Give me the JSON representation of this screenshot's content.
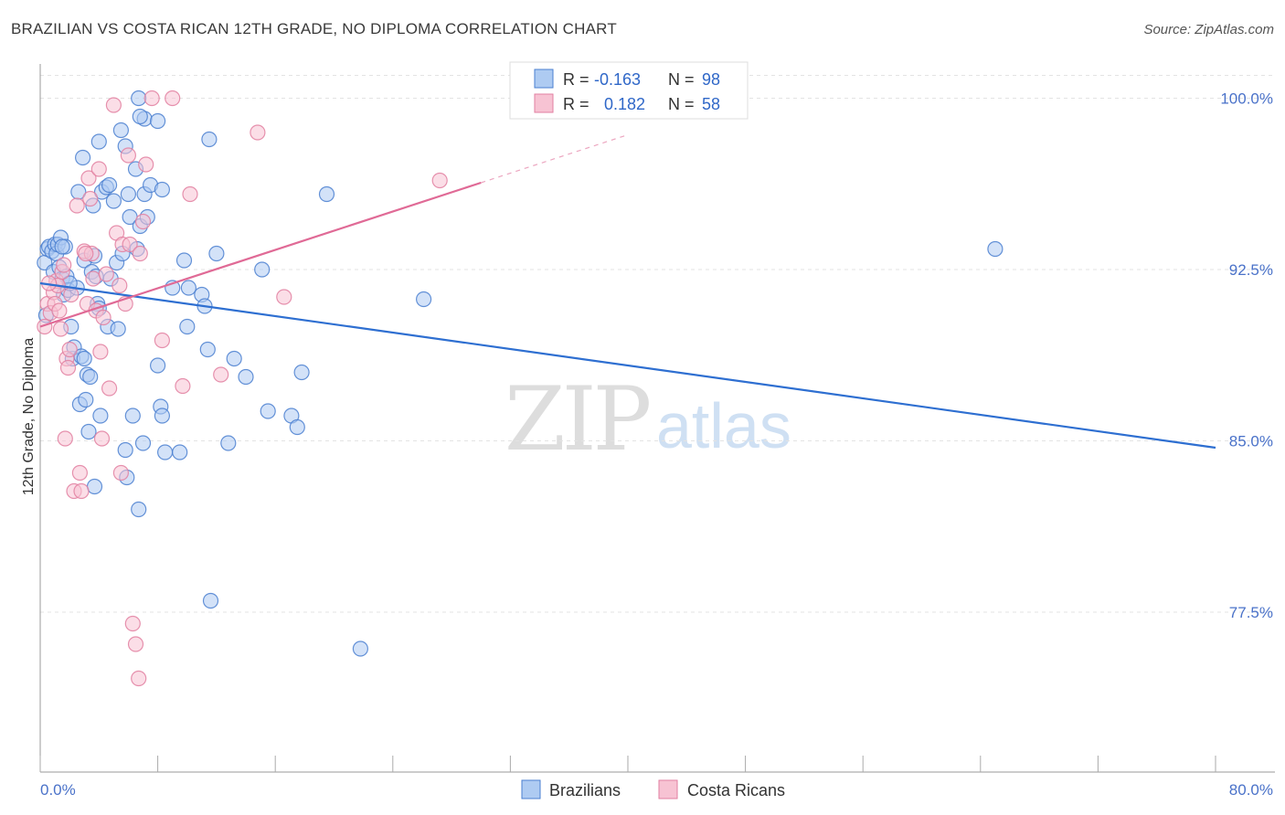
{
  "title": "BRAZILIAN VS COSTA RICAN 12TH GRADE, NO DIPLOMA CORRELATION CHART",
  "source": "Source: ZipAtlas.com",
  "watermark": {
    "zip": "ZIP",
    "atlas": "atlas"
  },
  "colors": {
    "blue_fill": "#aecbf2",
    "blue_stroke": "#4a7fd0",
    "blue_line": "#2e6fd1",
    "pink_fill": "#f7c3d3",
    "pink_stroke": "#e27fa0",
    "pink_line": "#e06a96",
    "grid": "#e3e3e3",
    "tick_label": "#4a72c9"
  },
  "legend": {
    "rows": [
      {
        "r_label": "R =",
        "r_value": "-0.163",
        "n_label": "N =",
        "n_value": "98",
        "series": "blue"
      },
      {
        "r_label": "R =",
        "r_value": "0.182",
        "n_label": "N =",
        "n_value": "58",
        "series": "pink"
      }
    ]
  },
  "chart_data": {
    "type": "scatter",
    "title": "BRAZILIAN VS COSTA RICAN 12TH GRADE, NO DIPLOMA CORRELATION CHART",
    "xlabel": "",
    "ylabel": "12th Grade, No Diploma",
    "xlim": [
      0,
      80
    ],
    "ylim": [
      70.5,
      101.5
    ],
    "x_tick_labels": [
      "0.0%",
      "80.0%"
    ],
    "y_ticks": [
      77.5,
      85.0,
      92.5,
      100.0
    ],
    "y_tick_labels": [
      "77.5%",
      "85.0%",
      "92.5%",
      "100.0%"
    ],
    "legend_position": "bottom",
    "series": [
      {
        "name": "Brazilians",
        "color": "blue",
        "R": -0.163,
        "N": 98,
        "trend": {
          "x": [
            0,
            80
          ],
          "y": [
            91.9,
            84.7
          ],
          "dashed_from": null
        },
        "points": [
          [
            0.3,
            92.8
          ],
          [
            0.4,
            90.5
          ],
          [
            0.5,
            93.4
          ],
          [
            0.6,
            93.5
          ],
          [
            0.8,
            93.3
          ],
          [
            0.9,
            92.4
          ],
          [
            1.0,
            93.6
          ],
          [
            1.1,
            93.2
          ],
          [
            1.2,
            93.6
          ],
          [
            1.3,
            92.6
          ],
          [
            1.4,
            93.9
          ],
          [
            1.5,
            92.1
          ],
          [
            1.6,
            91.4
          ],
          [
            1.7,
            93.5
          ],
          [
            1.8,
            92.2
          ],
          [
            1.9,
            91.6
          ],
          [
            2.1,
            90.0
          ],
          [
            2.2,
            88.6
          ],
          [
            2.3,
            89.1
          ],
          [
            2.5,
            91.7
          ],
          [
            2.6,
            95.9
          ],
          [
            2.7,
            86.6
          ],
          [
            2.8,
            88.7
          ],
          [
            2.9,
            97.4
          ],
          [
            3.0,
            92.9
          ],
          [
            3.1,
            86.8
          ],
          [
            3.2,
            87.9
          ],
          [
            3.3,
            85.4
          ],
          [
            3.4,
            87.8
          ],
          [
            3.5,
            92.4
          ],
          [
            3.6,
            95.3
          ],
          [
            3.7,
            93.1
          ],
          [
            3.8,
            92.2
          ],
          [
            3.9,
            91.0
          ],
          [
            4.0,
            98.1
          ],
          [
            4.1,
            86.1
          ],
          [
            4.2,
            95.9
          ],
          [
            4.5,
            96.1
          ],
          [
            4.6,
            90.0
          ],
          [
            4.7,
            96.2
          ],
          [
            4.8,
            92.1
          ],
          [
            5.0,
            95.5
          ],
          [
            5.2,
            92.8
          ],
          [
            5.3,
            89.9
          ],
          [
            5.5,
            98.6
          ],
          [
            5.6,
            93.2
          ],
          [
            5.8,
            97.9
          ],
          [
            6.0,
            95.8
          ],
          [
            6.1,
            94.8
          ],
          [
            6.3,
            86.1
          ],
          [
            6.5,
            96.9
          ],
          [
            6.6,
            93.4
          ],
          [
            6.8,
            94.4
          ],
          [
            7.0,
            84.9
          ],
          [
            7.1,
            95.8
          ],
          [
            7.3,
            94.8
          ],
          [
            7.5,
            96.2
          ],
          [
            8.0,
            88.3
          ],
          [
            8.2,
            86.5
          ],
          [
            8.3,
            86.1
          ],
          [
            8.5,
            84.5
          ],
          [
            9.0,
            91.7
          ],
          [
            9.5,
            84.5
          ],
          [
            9.8,
            92.9
          ],
          [
            10.1,
            91.7
          ],
          [
            11.0,
            91.4
          ],
          [
            11.2,
            90.9
          ],
          [
            11.4,
            89.0
          ],
          [
            11.5,
            98.2
          ],
          [
            12.0,
            93.2
          ],
          [
            12.8,
            84.9
          ],
          [
            13.2,
            88.6
          ],
          [
            14.0,
            87.8
          ],
          [
            15.1,
            92.5
          ],
          [
            15.5,
            86.3
          ],
          [
            17.1,
            86.1
          ],
          [
            17.5,
            85.6
          ],
          [
            17.8,
            88.0
          ],
          [
            19.5,
            95.8
          ],
          [
            21.8,
            75.9
          ],
          [
            26.1,
            91.2
          ],
          [
            65.0,
            93.4
          ],
          [
            6.7,
            100.0
          ],
          [
            7.1,
            99.1
          ],
          [
            8.0,
            99.0
          ],
          [
            6.8,
            99.2
          ],
          [
            8.3,
            96.0
          ],
          [
            4.0,
            90.8
          ],
          [
            2.0,
            91.9
          ],
          [
            1.5,
            93.5
          ],
          [
            6.7,
            82.0
          ],
          [
            5.9,
            83.4
          ],
          [
            3.7,
            83.0
          ],
          [
            11.6,
            78.0
          ],
          [
            5.8,
            84.6
          ],
          [
            10.0,
            90.0
          ],
          [
            3.0,
            88.6
          ]
        ]
      },
      {
        "name": "Costa Ricans",
        "color": "pink",
        "R": 0.182,
        "N": 58,
        "trend": {
          "x": [
            0,
            30,
            40
          ],
          "y": [
            90.0,
            96.3,
            98.4
          ],
          "dashed_from": 30
        },
        "points": [
          [
            0.3,
            90.0
          ],
          [
            0.5,
            91.0
          ],
          [
            0.7,
            90.6
          ],
          [
            0.9,
            91.5
          ],
          [
            1.0,
            91.0
          ],
          [
            1.1,
            92.0
          ],
          [
            1.2,
            91.8
          ],
          [
            1.3,
            90.7
          ],
          [
            1.4,
            89.9
          ],
          [
            1.5,
            92.4
          ],
          [
            1.6,
            92.7
          ],
          [
            1.7,
            85.1
          ],
          [
            1.8,
            88.6
          ],
          [
            1.9,
            88.2
          ],
          [
            2.0,
            89.0
          ],
          [
            2.3,
            82.8
          ],
          [
            2.5,
            95.3
          ],
          [
            2.7,
            83.6
          ],
          [
            2.8,
            82.8
          ],
          [
            3.0,
            93.3
          ],
          [
            3.2,
            91.0
          ],
          [
            3.3,
            96.5
          ],
          [
            3.4,
            95.6
          ],
          [
            3.5,
            93.2
          ],
          [
            3.6,
            92.1
          ],
          [
            3.8,
            90.7
          ],
          [
            4.0,
            96.9
          ],
          [
            4.2,
            85.1
          ],
          [
            4.3,
            90.4
          ],
          [
            4.5,
            92.3
          ],
          [
            4.7,
            87.3
          ],
          [
            5.0,
            99.7
          ],
          [
            5.2,
            94.1
          ],
          [
            5.4,
            91.8
          ],
          [
            5.5,
            83.6
          ],
          [
            5.6,
            93.6
          ],
          [
            5.8,
            91.0
          ],
          [
            6.0,
            97.5
          ],
          [
            6.1,
            93.6
          ],
          [
            6.3,
            77.0
          ],
          [
            6.5,
            76.1
          ],
          [
            6.7,
            74.6
          ],
          [
            6.8,
            93.2
          ],
          [
            7.0,
            94.6
          ],
          [
            7.2,
            97.1
          ],
          [
            7.6,
            100.0
          ],
          [
            8.3,
            89.4
          ],
          [
            9.7,
            87.4
          ],
          [
            10.2,
            95.8
          ],
          [
            12.3,
            87.9
          ],
          [
            14.8,
            98.5
          ],
          [
            16.6,
            91.3
          ],
          [
            27.2,
            96.4
          ],
          [
            9.0,
            100.0
          ],
          [
            2.1,
            91.4
          ],
          [
            4.1,
            88.9
          ],
          [
            3.1,
            93.2
          ],
          [
            0.6,
            91.9
          ]
        ]
      }
    ]
  }
}
